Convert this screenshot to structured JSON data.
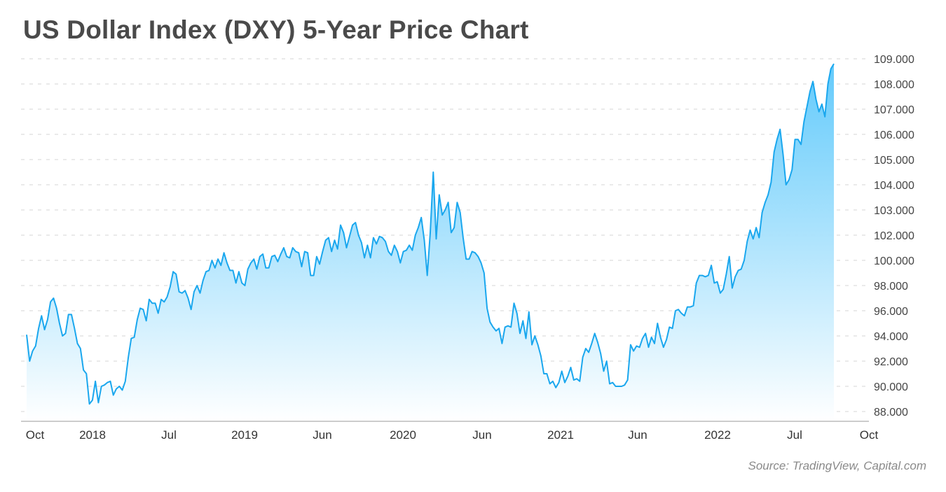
{
  "chart_data": {
    "type": "area",
    "title": "US Dollar Index (DXY) 5-Year Price Chart",
    "source": "Source: TradingView, Capital.com",
    "y_tick_labels": [
      "88.000",
      "90.000",
      "92.000",
      "94.000",
      "96.000",
      "98.000",
      "100.000",
      "102.000",
      "103.000",
      "104.000",
      "105.000",
      "106.000",
      "107.000",
      "108.000",
      "109.000"
    ],
    "x_tick_labels": [
      "Oct",
      "2018",
      "Jul",
      "2019",
      "Jun",
      "2020",
      "Jun",
      "2021",
      "Jun",
      "2022",
      "Jul",
      "Oct"
    ],
    "grid": "horizontal dashed",
    "legend": "none",
    "colors": {
      "line": "#1aa7ee",
      "fill_top": "#5cc8fb",
      "fill_bottom": "#ffffff",
      "grid": "#d5d5d5",
      "axis": "#bbbbbb"
    },
    "series": [
      {
        "values": [
          94.1,
          92.0,
          92.8,
          93.2,
          94.6,
          95.6,
          94.5,
          95.3,
          96.7,
          97.0,
          96.2,
          95.0,
          94.0,
          94.2,
          95.7,
          95.7,
          94.6,
          93.4,
          93.0,
          91.3,
          91.0,
          88.6,
          88.9,
          90.4,
          88.7,
          90.0,
          90.1,
          90.3,
          90.4,
          89.3,
          89.8,
          90.0,
          89.7,
          90.4,
          92.3,
          93.8,
          93.9,
          95.3,
          96.2,
          96.1,
          95.2,
          96.9,
          96.6,
          96.6,
          95.8,
          96.9,
          96.7,
          97.1,
          97.9,
          99.1,
          98.9,
          97.5,
          97.4,
          97.6,
          97.0,
          96.1,
          97.5,
          98.0,
          97.4,
          98.4,
          99.1,
          99.2,
          100.0,
          99.4,
          100.1,
          99.6,
          100.6,
          99.8,
          99.2,
          99.2,
          98.2,
          99.1,
          98.2,
          98.0,
          99.3,
          99.8,
          100.1,
          99.3,
          100.3,
          100.5,
          99.4,
          99.4,
          100.3,
          100.4,
          99.9,
          100.5,
          101.0,
          100.3,
          100.2,
          101.0,
          100.7,
          100.6,
          99.5,
          100.7,
          100.6,
          98.8,
          98.8,
          100.3,
          99.7,
          100.7,
          101.6,
          101.8,
          100.7,
          101.6,
          100.9,
          102.4,
          102.1,
          101.0,
          101.9,
          102.4,
          102.5,
          102.0,
          101.4,
          100.2,
          101.2,
          100.2,
          101.8,
          101.3,
          101.9,
          101.8,
          101.5,
          100.7,
          100.4,
          101.2,
          100.7,
          99.8,
          100.7,
          100.8,
          101.2,
          100.8,
          102.0,
          102.3,
          102.7,
          101.6,
          98.8,
          102.1,
          104.5,
          101.7,
          103.6,
          102.8,
          103.0,
          103.3,
          102.1,
          102.3,
          103.3,
          102.9,
          101.8,
          100.1,
          100.1,
          100.7,
          100.6,
          100.3,
          99.8,
          99.0,
          96.2,
          95.1,
          94.7,
          94.4,
          94.6,
          93.4,
          94.7,
          94.8,
          94.7,
          96.6,
          95.8,
          94.2,
          95.2,
          93.8,
          95.9,
          93.3,
          94.0,
          93.3,
          92.4,
          91.0,
          91.0,
          90.2,
          90.4,
          89.9,
          90.3,
          91.2,
          90.3,
          90.8,
          91.5,
          90.5,
          90.6,
          90.4,
          92.3,
          93.0,
          92.7,
          93.4,
          94.2,
          93.5,
          92.6,
          91.2,
          92.0,
          90.2,
          90.3,
          90.0,
          90.0,
          90.0,
          90.1,
          90.5,
          93.3,
          92.8,
          93.2,
          93.1,
          93.8,
          94.2,
          93.1,
          93.9,
          93.4,
          95.0,
          93.9,
          93.1,
          93.7,
          94.7,
          94.6,
          96.0,
          96.1,
          95.8,
          95.6,
          96.3,
          96.3,
          96.4,
          98.2,
          98.8,
          98.8,
          98.7,
          98.8,
          99.6,
          98.2,
          98.3,
          97.4,
          97.7,
          98.9,
          100.3,
          97.8,
          98.7,
          99.2,
          99.3,
          100.0,
          101.5,
          102.2,
          101.7,
          102.3,
          101.8,
          102.9,
          103.3,
          103.6,
          104.1,
          105.3,
          105.8,
          106.2,
          105.2,
          104.0,
          104.2,
          104.6,
          105.8,
          105.8,
          105.6,
          106.5,
          107.1,
          107.7,
          108.1,
          107.4,
          106.9,
          107.2,
          106.7,
          108.0,
          108.6,
          108.8
        ]
      }
    ]
  }
}
